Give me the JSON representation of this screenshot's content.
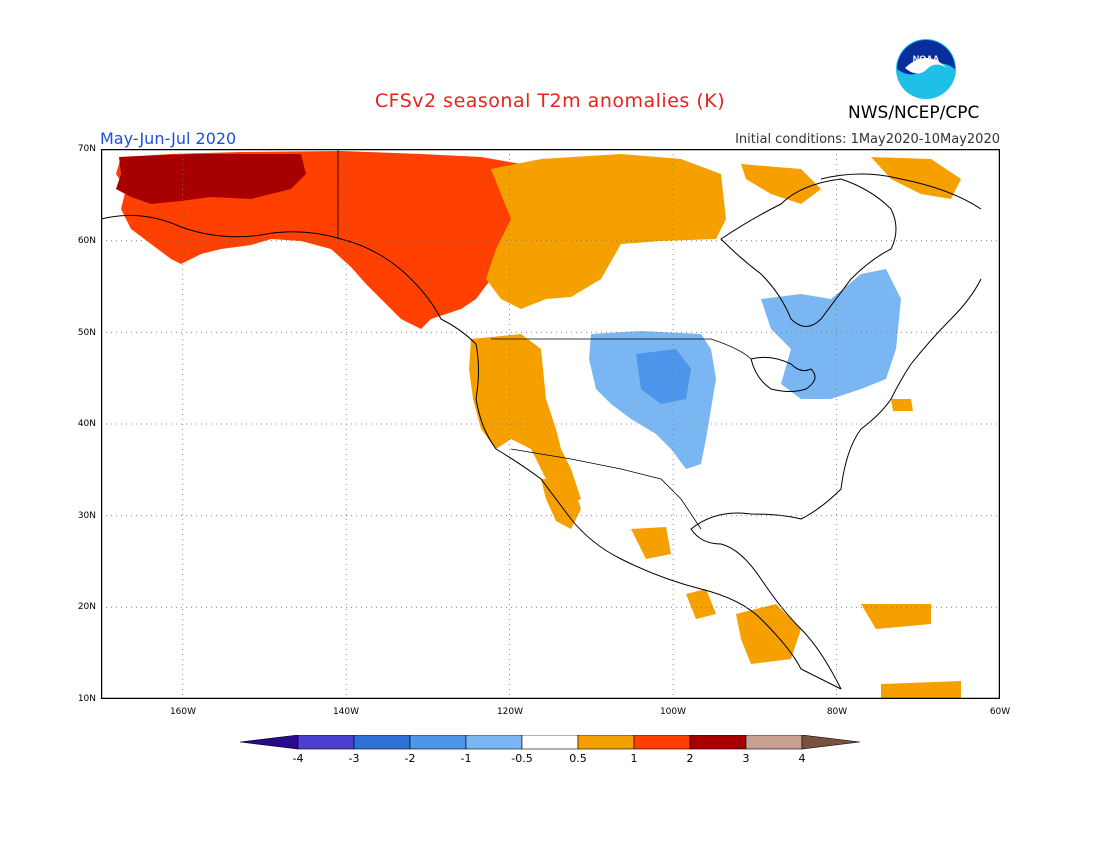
{
  "header": {
    "title": "CFSv2 seasonal T2m anomalies (K)",
    "period": "May-Jun-Jul 2020",
    "initial_conditions": "Initial conditions: 1May2020-10May2020",
    "agency": "NWS/NCEP/CPC",
    "logo_text": "NOAA"
  },
  "map": {
    "projection": "lat-lon",
    "lat_range": [
      10,
      70
    ],
    "lon_range": [
      -170,
      -60
    ],
    "lat_labels": [
      "70N",
      "60N",
      "50N",
      "40N",
      "30N",
      "20N",
      "10N"
    ],
    "lon_labels": [
      "160W",
      "140W",
      "120W",
      "100W",
      "80W",
      "60W"
    ],
    "gridlines": "dotted"
  },
  "colorbar": {
    "labels": [
      "-4",
      "-3",
      "-2",
      "-1",
      "-0.5",
      "0.5",
      "1",
      "2",
      "3",
      "4"
    ],
    "colors": [
      "#2a0a8c",
      "#4a3fd0",
      "#2e6fd8",
      "#4c95ea",
      "#7ab7f2",
      "#ffffff",
      "#f6a000",
      "#ff4000",
      "#a80000",
      "#c8a090",
      "#7a5040"
    ]
  },
  "anomaly_regions": [
    {
      "name": "alaska-yukon-warm",
      "level": "1 to 3",
      "color": "#ff4000"
    },
    {
      "name": "western-alaska-strong-warm",
      "level": "2 to 3",
      "color": "#a80000"
    },
    {
      "name": "western-canada-warm",
      "level": "0.5 to 1",
      "color": "#f6a000"
    },
    {
      "name": "us-west-coast-warm",
      "level": "0.5 to 1",
      "color": "#f6a000"
    },
    {
      "name": "northern-plains-cool",
      "level": "-1 to -0.5",
      "color": "#7ab7f2"
    },
    {
      "name": "dakotas-cool-core",
      "level": "-2 to -1",
      "color": "#4c95ea"
    },
    {
      "name": "quebec-cool",
      "level": "-1 to -0.5",
      "color": "#7ab7f2"
    },
    {
      "name": "mexico-central-america-warm",
      "level": "0.5 to 1",
      "color": "#f6a000"
    }
  ]
}
